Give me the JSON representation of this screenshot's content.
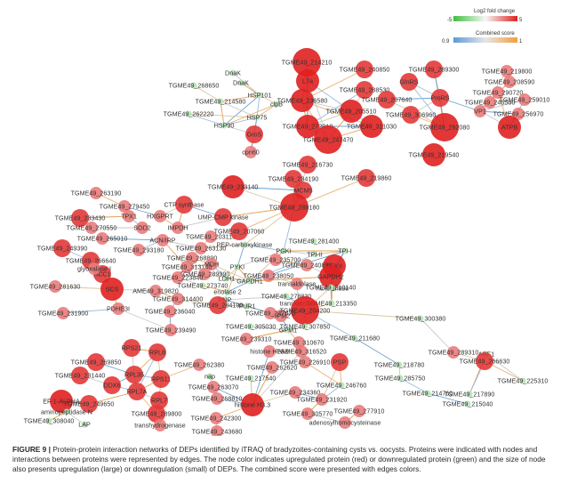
{
  "legend": {
    "fold_title": "Log2 fold change",
    "fold_min": "-5",
    "fold_max": "5",
    "fold_colors": [
      "#3fbf3f",
      "#f7f7f7",
      "#e02020"
    ],
    "score_title": "Combined score",
    "score_min": "0.9",
    "score_max": "1",
    "score_colors": [
      "#5b9bd5",
      "#e6e6e6",
      "#f0a040"
    ]
  },
  "caption": {
    "label": "FIGURE 9 |",
    "text": " Protein-protein interaction networks of DEPs identified by iTRAQ of bradyzoites-containing cysts vs. oocysts. Proteins were indicated with nodes and interactions between proteins were represented by edges. The node color indicates upregulated protein (red) or downregulated protein (green) and the size of node also presents upregulation (large) or downregulation (small) of DEPs. The combined score were presented with edges colors."
  },
  "nodes": [
    {
      "id": "n1",
      "label": "TGME49_214210",
      "fc": 4
    },
    {
      "id": "n2",
      "label": "TGME49_240850",
      "fc": 2
    },
    {
      "id": "n3",
      "label": "TGME49_289300",
      "fc": 2
    },
    {
      "id": "n4",
      "label": "TGME49_219800",
      "fc": 1
    },
    {
      "id": "n5",
      "label": "DnaK",
      "fc": -1
    },
    {
      "id": "n6",
      "label": "TGME49_268650",
      "fc": -1
    },
    {
      "id": "n7",
      "label": "DnaK",
      "fc": -1
    },
    {
      "id": "n8",
      "label": "HSP101",
      "fc": -1
    },
    {
      "id": "n9",
      "label": "L7a",
      "fc": 3
    },
    {
      "id": "n10",
      "label": "TGME49_288530",
      "fc": 2
    },
    {
      "id": "n11",
      "label": "GlnRS",
      "fc": 2
    },
    {
      "id": "n12",
      "label": "TGME49_208590",
      "fc": 1
    },
    {
      "id": "n13",
      "label": "TGME49_214580",
      "fc": -1
    },
    {
      "id": "n14",
      "label": "clpB",
      "fc": -1
    },
    {
      "id": "n15",
      "label": "TGME49_236580",
      "fc": 3
    },
    {
      "id": "n16",
      "label": "TGME49_207640",
      "fc": 2
    },
    {
      "id": "n17",
      "label": "ProRS",
      "fc": 2
    },
    {
      "id": "n18",
      "label": "TGME49_290720",
      "fc": 1
    },
    {
      "id": "n19",
      "label": "TGME49_262220",
      "fc": -1
    },
    {
      "id": "n20",
      "label": "HSP75",
      "fc": -1
    },
    {
      "id": "n21",
      "label": "TGME49_205510",
      "fc": 3
    },
    {
      "id": "n22",
      "label": "TGME49_306960",
      "fc": 2
    },
    {
      "id": "n23",
      "label": "TGME49_246560",
      "fc": 1
    },
    {
      "id": "n24",
      "label": "VP1",
      "fc": 1
    },
    {
      "id": "n25",
      "label": "TGME49_259010",
      "fc": 1
    },
    {
      "id": "n26",
      "label": "HSP90",
      "fc": -1
    },
    {
      "id": "n27",
      "label": "TGME49_272010",
      "fc": 3
    },
    {
      "id": "n28",
      "label": "TGME49_311030",
      "fc": 3
    },
    {
      "id": "n29",
      "label": "TGME49_292080",
      "fc": 4
    },
    {
      "id": "n30",
      "label": "TGME49_256970",
      "fc": 1
    },
    {
      "id": "n31",
      "label": "GroS",
      "fc": 2
    },
    {
      "id": "n32",
      "label": "TGME49_247470",
      "fc": 4
    },
    {
      "id": "n33",
      "label": "ATPB",
      "fc": 3
    },
    {
      "id": "n34",
      "label": "cpn60",
      "fc": 1
    },
    {
      "id": "n35",
      "label": "TGME49_219540",
      "fc": 3
    },
    {
      "id": "n36",
      "label": "TGME49_216730",
      "fc": 2
    },
    {
      "id": "n37",
      "label": "TGME49_234190",
      "fc": 2
    },
    {
      "id": "n38",
      "label": "TGME49_219860",
      "fc": 2
    },
    {
      "id": "n39",
      "label": "TGME49_233140",
      "fc": 3
    },
    {
      "id": "n40",
      "label": "MCM5",
      "fc": 2
    },
    {
      "id": "n41",
      "label": "TGME49_263190",
      "fc": 1
    },
    {
      "id": "n42",
      "label": "CTP synthase",
      "fc": 2
    },
    {
      "id": "n43",
      "label": "TGME49_279450",
      "fc": 1
    },
    {
      "id": "n44",
      "label": "TGME49_289180",
      "fc": 4
    },
    {
      "id": "n45",
      "label": "TGME49_233430",
      "fc": 2
    },
    {
      "id": "n46",
      "label": "TPX1",
      "fc": 1
    },
    {
      "id": "n47",
      "label": "HXGPRT",
      "fc": 1
    },
    {
      "id": "n48",
      "label": "UMP-CMP kinase",
      "fc": 2
    },
    {
      "id": "n49",
      "label": "TGME49_270550",
      "fc": 1
    },
    {
      "id": "n50",
      "label": "SOD2",
      "fc": 1
    },
    {
      "id": "n51",
      "label": "IMPDH",
      "fc": 1
    },
    {
      "id": "n52",
      "label": "TGME49_265010",
      "fc": 1
    },
    {
      "id": "n53",
      "label": "ACN/IRP",
      "fc": 1
    },
    {
      "id": "n54",
      "label": "TGME49_203110",
      "fc": 1
    },
    {
      "id": "n55",
      "label": "TGME49_207060",
      "fc": 2
    },
    {
      "id": "n56",
      "label": "TGME49_249390",
      "fc": 2
    },
    {
      "id": "n57",
      "label": "TGME49_293180",
      "fc": 1
    },
    {
      "id": "n58",
      "label": "TGME49_263130",
      "fc": 1
    },
    {
      "id": "n59",
      "label": "PEP-carboxykinase",
      "fc": -1
    },
    {
      "id": "n60",
      "label": "TGME49_281400",
      "fc": -1
    },
    {
      "id": "n61",
      "label": "PGKI",
      "fc": -1
    },
    {
      "id": "n62",
      "label": "TPI-II",
      "fc": -1
    },
    {
      "id": "n63",
      "label": "TPI-I",
      "fc": -1
    },
    {
      "id": "n64",
      "label": "TGME49_266640",
      "fc": 2
    },
    {
      "id": "n65",
      "label": "TGME49_268890",
      "fc": 1
    },
    {
      "id": "n66",
      "label": "TGME49_235700",
      "fc": 1
    },
    {
      "id": "n67",
      "label": "PFKII",
      "fc": 3
    },
    {
      "id": "n68",
      "label": "ACC1",
      "fc": 2
    },
    {
      "id": "n69",
      "label": "MDH",
      "fc": 1
    },
    {
      "id": "n70",
      "label": "TGME49_313140",
      "fc": 1
    },
    {
      "id": "n71",
      "label": "PYKI",
      "fc": -1
    },
    {
      "id": "n72",
      "label": "TGME49_240890",
      "fc": 1
    },
    {
      "id": "n73",
      "label": "glyoxalase I",
      "fc": 1
    },
    {
      "id": "n74",
      "label": "TGME49_289990",
      "fc": 1
    },
    {
      "id": "n75",
      "label": "TGME49_238050",
      "fc": 1
    },
    {
      "id": "n76",
      "label": "GAPDH2",
      "fc": 3
    },
    {
      "id": "n77",
      "label": "TGME49_223840",
      "fc": 1
    },
    {
      "id": "n78",
      "label": "LDH1",
      "fc": -1
    },
    {
      "id": "n79",
      "label": "GAPDH1",
      "fc": -1
    },
    {
      "id": "n80",
      "label": "TGME49_281630",
      "fc": 1
    },
    {
      "id": "n81",
      "label": "TGME49_273740",
      "fc": -1
    },
    {
      "id": "n82",
      "label": "transaldolase",
      "fc": 1
    },
    {
      "id": "n83",
      "label": "enolase 2",
      "fc": -1
    },
    {
      "id": "n84",
      "label": "hexokinase",
      "fc": -1
    },
    {
      "id": "n85",
      "label": "TGME49_260140",
      "fc": -1
    },
    {
      "id": "n86",
      "label": "SCS",
      "fc": 3
    },
    {
      "id": "n87",
      "label": "AME49_319820",
      "fc": 1
    },
    {
      "id": "n88",
      "label": "TGME49_314400",
      "fc": 1
    },
    {
      "id": "n89",
      "label": "PNP",
      "fc": -1
    },
    {
      "id": "n90",
      "label": "TGME49_278830",
      "fc": -1
    },
    {
      "id": "n91",
      "label": "TGME49_284190",
      "fc": 2
    },
    {
      "id": "n92",
      "label": "FUR1",
      "fc": -1
    },
    {
      "id": "n93",
      "label": "transketolase",
      "fc": -1
    },
    {
      "id": "n94",
      "label": "TGME49_213350",
      "fc": -1
    },
    {
      "id": "n95",
      "label": "PDHE3I",
      "fc": 1
    },
    {
      "id": "n96",
      "label": "TGME49_236040",
      "fc": 1
    },
    {
      "id": "n97",
      "label": "TGME49_231900",
      "fc": 1
    },
    {
      "id": "n98",
      "label": "GPM2",
      "fc": 1
    },
    {
      "id": "n99",
      "label": "TGME49_204200",
      "fc": 4
    },
    {
      "id": "n100",
      "label": "TGME49_247670",
      "fc": 1
    },
    {
      "id": "n101",
      "label": "TGME49_239490",
      "fc": 1
    },
    {
      "id": "n102",
      "label": "TGME49_305030",
      "fc": -1
    },
    {
      "id": "n103",
      "label": "TGME49_307850",
      "fc": -1
    },
    {
      "id": "n104",
      "label": "GPM1",
      "fc": -1
    },
    {
      "id": "n105",
      "label": "TGME49_300380",
      "fc": -1
    },
    {
      "id": "n106",
      "label": "TGME49_239310",
      "fc": 1
    },
    {
      "id": "n107",
      "label": "TGME49_310670",
      "fc": 1
    },
    {
      "id": "n108",
      "label": "TGME49_211680",
      "fc": -1
    },
    {
      "id": "n109",
      "label": "RPS21",
      "fc": 2
    },
    {
      "id": "n110",
      "label": "histone H2AZ",
      "fc": 1
    },
    {
      "id": "n111",
      "label": "TGME49_316520",
      "fc": 1
    },
    {
      "id": "n112",
      "label": "RPL8",
      "fc": 2
    },
    {
      "id": "n113",
      "label": "TGME49_226910",
      "fc": 1
    },
    {
      "id": "n114",
      "label": "PSP",
      "fc": 2
    },
    {
      "id": "n115",
      "label": "TGME49_289310",
      "fc": 1
    },
    {
      "id": "n116",
      "label": "ARF1",
      "fc": -1
    },
    {
      "id": "n117",
      "label": "TGME49_269850",
      "fc": 2
    },
    {
      "id": "n118",
      "label": "TGME49_262380",
      "fc": 1
    },
    {
      "id": "n119",
      "label": "TGME49_262620",
      "fc": 1
    },
    {
      "id": "n120",
      "label": "TGME49_218780",
      "fc": -1
    },
    {
      "id": "n121",
      "label": "TGME49_266630",
      "fc": 2
    },
    {
      "id": "n122",
      "label": "TGME49_231440",
      "fc": 2
    },
    {
      "id": "n123",
      "label": "RPL35",
      "fc": 2
    },
    {
      "id": "n124",
      "label": "RPS11",
      "fc": 2
    },
    {
      "id": "n125",
      "label": "nap",
      "fc": -1
    },
    {
      "id": "n126",
      "label": "TGME49_217540",
      "fc": -1
    },
    {
      "id": "n127",
      "label": "TGME49_285750",
      "fc": -1
    },
    {
      "id": "n128",
      "label": "TGME49_225310",
      "fc": -1
    },
    {
      "id": "n129",
      "label": "DDX6",
      "fc": 2
    },
    {
      "id": "n130",
      "label": "TGME49_263070",
      "fc": 1
    },
    {
      "id": "n131",
      "label": "TGME49_246760",
      "fc": -1
    },
    {
      "id": "n132",
      "label": "TGME49_214760",
      "fc": -1
    },
    {
      "id": "n133",
      "label": "RPL7A",
      "fc": 2
    },
    {
      "id": "n134",
      "label": "TGME49_234360",
      "fc": 1
    },
    {
      "id": "n135",
      "label": "TGME49_231920",
      "fc": 1
    },
    {
      "id": "n136",
      "label": "TGME49_217890",
      "fc": -1
    },
    {
      "id": "n137",
      "label": "EF-1-ALPHA",
      "fc": 3
    },
    {
      "id": "n138",
      "label": "TGME49_249650",
      "fc": 2
    },
    {
      "id": "n139",
      "label": "RPL7",
      "fc": 2
    },
    {
      "id": "n140",
      "label": "TGME49_268810",
      "fc": 1
    },
    {
      "id": "n141",
      "label": "TGME49_215040",
      "fc": -1
    },
    {
      "id": "n142",
      "label": "aminopeptidase N",
      "fc": -1
    },
    {
      "id": "n143",
      "label": "TGME49_289800",
      "fc": 2
    },
    {
      "id": "n144",
      "label": "histone H3.3",
      "fc": 3
    },
    {
      "id": "n145",
      "label": "TGME49_305770",
      "fc": 1
    },
    {
      "id": "n146",
      "label": "TGME49_277910",
      "fc": 1
    },
    {
      "id": "n147",
      "label": "TGME49_308040",
      "fc": -1
    },
    {
      "id": "n148",
      "label": "LAP",
      "fc": -1
    },
    {
      "id": "n149",
      "label": "transhydrogenase",
      "fc": 1
    },
    {
      "id": "n150",
      "label": "TGME49_242300",
      "fc": 1
    },
    {
      "id": "n151",
      "label": "adenosylhomocysteinase",
      "fc": 1
    },
    {
      "id": "n152",
      "label": "TGME49_243680",
      "fc": 1
    }
  ]
}
